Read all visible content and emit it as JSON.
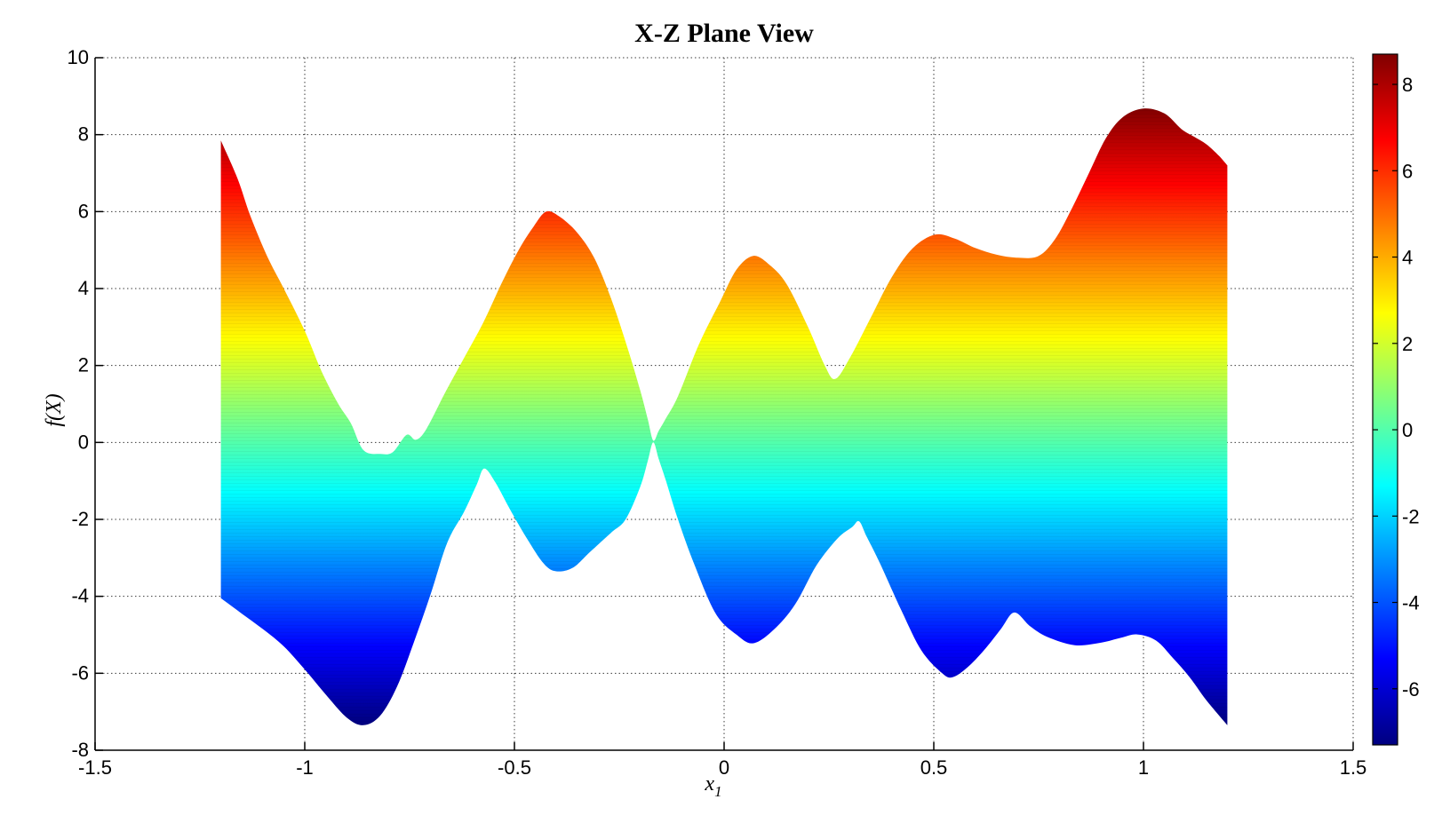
{
  "title": "X-Z Plane View",
  "axes": {
    "xlabel": {
      "base": "x",
      "sub": "1"
    },
    "ylabel": "f(X)"
  },
  "chart_data": {
    "type": "area",
    "subtype": "surface-envelope-band-xz-view",
    "title": "X-Z Plane View",
    "xlabel": "x_1",
    "ylabel": "f(X)",
    "xlim": [
      -1.5,
      1.5
    ],
    "ylim": [
      -8,
      10
    ],
    "grid": true,
    "grid_style": "dotted",
    "x_ticks": [
      {
        "v": -1.5,
        "label": "-1.5"
      },
      {
        "v": -1.0,
        "label": "-1"
      },
      {
        "v": -0.5,
        "label": "-0.5"
      },
      {
        "v": 0.0,
        "label": "0"
      },
      {
        "v": 0.5,
        "label": "0.5"
      },
      {
        "v": 1.0,
        "label": "1"
      },
      {
        "v": 1.5,
        "label": "1.5"
      }
    ],
    "y_ticks": [
      {
        "v": 10,
        "label": "10"
      },
      {
        "v": 8,
        "label": "8"
      },
      {
        "v": 6,
        "label": "6"
      },
      {
        "v": 4,
        "label": "4"
      },
      {
        "v": 2,
        "label": "2"
      },
      {
        "v": 0,
        "label": "0"
      },
      {
        "v": -2,
        "label": "-2"
      },
      {
        "v": -4,
        "label": "-4"
      },
      {
        "v": -6,
        "label": "-6"
      },
      {
        "v": -8,
        "label": "-8"
      }
    ],
    "colormap": "jet",
    "colormap_stops": [
      {
        "offset": 0.0,
        "color": "#800000"
      },
      {
        "offset": 0.125,
        "color": "#ff0000"
      },
      {
        "offset": 0.375,
        "color": "#ffff00"
      },
      {
        "offset": 0.625,
        "color": "#00ffff"
      },
      {
        "offset": 0.875,
        "color": "#0000ff"
      },
      {
        "offset": 1.0,
        "color": "#000080"
      }
    ],
    "color_range": [
      -7.3,
      8.7
    ],
    "colorbar": {
      "position": "right",
      "range": [
        -7.3,
        8.7
      ],
      "ticks": [
        {
          "v": 8,
          "label": "8"
        },
        {
          "v": 6,
          "label": "6"
        },
        {
          "v": 4,
          "label": "4"
        },
        {
          "v": 2,
          "label": "2"
        },
        {
          "v": 0,
          "label": "0"
        },
        {
          "v": -2,
          "label": "-2"
        },
        {
          "v": -4,
          "label": "-4"
        },
        {
          "v": -6,
          "label": "-6"
        }
      ]
    },
    "band": {
      "x_domain": [
        -1.2,
        1.2
      ],
      "upper": [
        [
          -1.2,
          7.85
        ],
        [
          -1.16,
          6.85
        ],
        [
          -1.13,
          5.9
        ],
        [
          -1.09,
          4.85
        ],
        [
          -1.05,
          4.0
        ],
        [
          -1.0,
          2.9
        ],
        [
          -0.96,
          1.85
        ],
        [
          -0.92,
          1.0
        ],
        [
          -0.89,
          0.5
        ],
        [
          -0.86,
          -0.2
        ],
        [
          -0.82,
          -0.3
        ],
        [
          -0.79,
          -0.25
        ],
        [
          -0.757,
          0.2
        ],
        [
          -0.735,
          0.07
        ],
        [
          -0.71,
          0.35
        ],
        [
          -0.665,
          1.3
        ],
        [
          -0.62,
          2.2
        ],
        [
          -0.575,
          3.1
        ],
        [
          -0.53,
          4.15
        ],
        [
          -0.49,
          5.0
        ],
        [
          -0.455,
          5.6
        ],
        [
          -0.424,
          6.0
        ],
        [
          -0.39,
          5.85
        ],
        [
          -0.35,
          5.45
        ],
        [
          -0.31,
          4.8
        ],
        [
          -0.27,
          3.75
        ],
        [
          -0.23,
          2.45
        ],
        [
          -0.2,
          1.35
        ],
        [
          -0.182,
          0.6
        ],
        [
          -0.169,
          0.05
        ],
        [
          -0.156,
          0.3
        ],
        [
          -0.14,
          0.6
        ],
        [
          -0.11,
          1.2
        ],
        [
          -0.06,
          2.55
        ],
        [
          -0.01,
          3.65
        ],
        [
          0.03,
          4.5
        ],
        [
          0.07,
          4.85
        ],
        [
          0.11,
          4.6
        ],
        [
          0.15,
          4.1
        ],
        [
          0.2,
          3.0
        ],
        [
          0.24,
          2.0
        ],
        [
          0.265,
          1.65
        ],
        [
          0.3,
          2.2
        ],
        [
          0.35,
          3.25
        ],
        [
          0.4,
          4.3
        ],
        [
          0.45,
          5.05
        ],
        [
          0.503,
          5.4
        ],
        [
          0.55,
          5.3
        ],
        [
          0.6,
          5.05
        ],
        [
          0.65,
          4.88
        ],
        [
          0.7,
          4.8
        ],
        [
          0.75,
          4.85
        ],
        [
          0.79,
          5.3
        ],
        [
          0.83,
          6.1
        ],
        [
          0.87,
          7.0
        ],
        [
          0.91,
          7.9
        ],
        [
          0.95,
          8.45
        ],
        [
          1.0,
          8.68
        ],
        [
          1.05,
          8.55
        ],
        [
          1.09,
          8.15
        ],
        [
          1.12,
          7.95
        ],
        [
          1.15,
          7.75
        ],
        [
          1.18,
          7.45
        ],
        [
          1.2,
          7.2
        ]
      ],
      "lower": [
        [
          -1.2,
          -4.05
        ],
        [
          -1.15,
          -4.45
        ],
        [
          -1.1,
          -4.85
        ],
        [
          -1.05,
          -5.3
        ],
        [
          -1.0,
          -5.9
        ],
        [
          -0.95,
          -6.55
        ],
        [
          -0.9,
          -7.15
        ],
        [
          -0.86,
          -7.35
        ],
        [
          -0.82,
          -7.1
        ],
        [
          -0.78,
          -6.35
        ],
        [
          -0.74,
          -5.2
        ],
        [
          -0.7,
          -3.95
        ],
        [
          -0.66,
          -2.6
        ],
        [
          -0.62,
          -1.8
        ],
        [
          -0.59,
          -1.1
        ],
        [
          -0.572,
          -0.68
        ],
        [
          -0.545,
          -1.05
        ],
        [
          -0.51,
          -1.75
        ],
        [
          -0.47,
          -2.5
        ],
        [
          -0.43,
          -3.15
        ],
        [
          -0.4,
          -3.35
        ],
        [
          -0.36,
          -3.25
        ],
        [
          -0.32,
          -2.85
        ],
        [
          -0.27,
          -2.35
        ],
        [
          -0.235,
          -2.0
        ],
        [
          -0.2,
          -1.15
        ],
        [
          -0.182,
          -0.48
        ],
        [
          -0.169,
          0.0
        ],
        [
          -0.156,
          -0.43
        ],
        [
          -0.14,
          -0.95
        ],
        [
          -0.11,
          -2.0
        ],
        [
          -0.07,
          -3.2
        ],
        [
          -0.02,
          -4.45
        ],
        [
          0.03,
          -5.0
        ],
        [
          0.07,
          -5.22
        ],
        [
          0.12,
          -4.85
        ],
        [
          0.17,
          -4.2
        ],
        [
          0.22,
          -3.2
        ],
        [
          0.27,
          -2.5
        ],
        [
          0.305,
          -2.2
        ],
        [
          0.322,
          -2.05
        ],
        [
          0.34,
          -2.45
        ],
        [
          0.37,
          -3.1
        ],
        [
          0.42,
          -4.3
        ],
        [
          0.47,
          -5.4
        ],
        [
          0.52,
          -6.0
        ],
        [
          0.545,
          -6.1
        ],
        [
          0.58,
          -5.85
        ],
        [
          0.62,
          -5.4
        ],
        [
          0.66,
          -4.85
        ],
        [
          0.692,
          -4.42
        ],
        [
          0.73,
          -4.78
        ],
        [
          0.77,
          -5.05
        ],
        [
          0.836,
          -5.27
        ],
        [
          0.9,
          -5.2
        ],
        [
          0.945,
          -5.08
        ],
        [
          0.985,
          -4.99
        ],
        [
          1.03,
          -5.15
        ],
        [
          1.07,
          -5.6
        ],
        [
          1.11,
          -6.1
        ],
        [
          1.15,
          -6.7
        ],
        [
          1.2,
          -7.35
        ]
      ]
    }
  }
}
